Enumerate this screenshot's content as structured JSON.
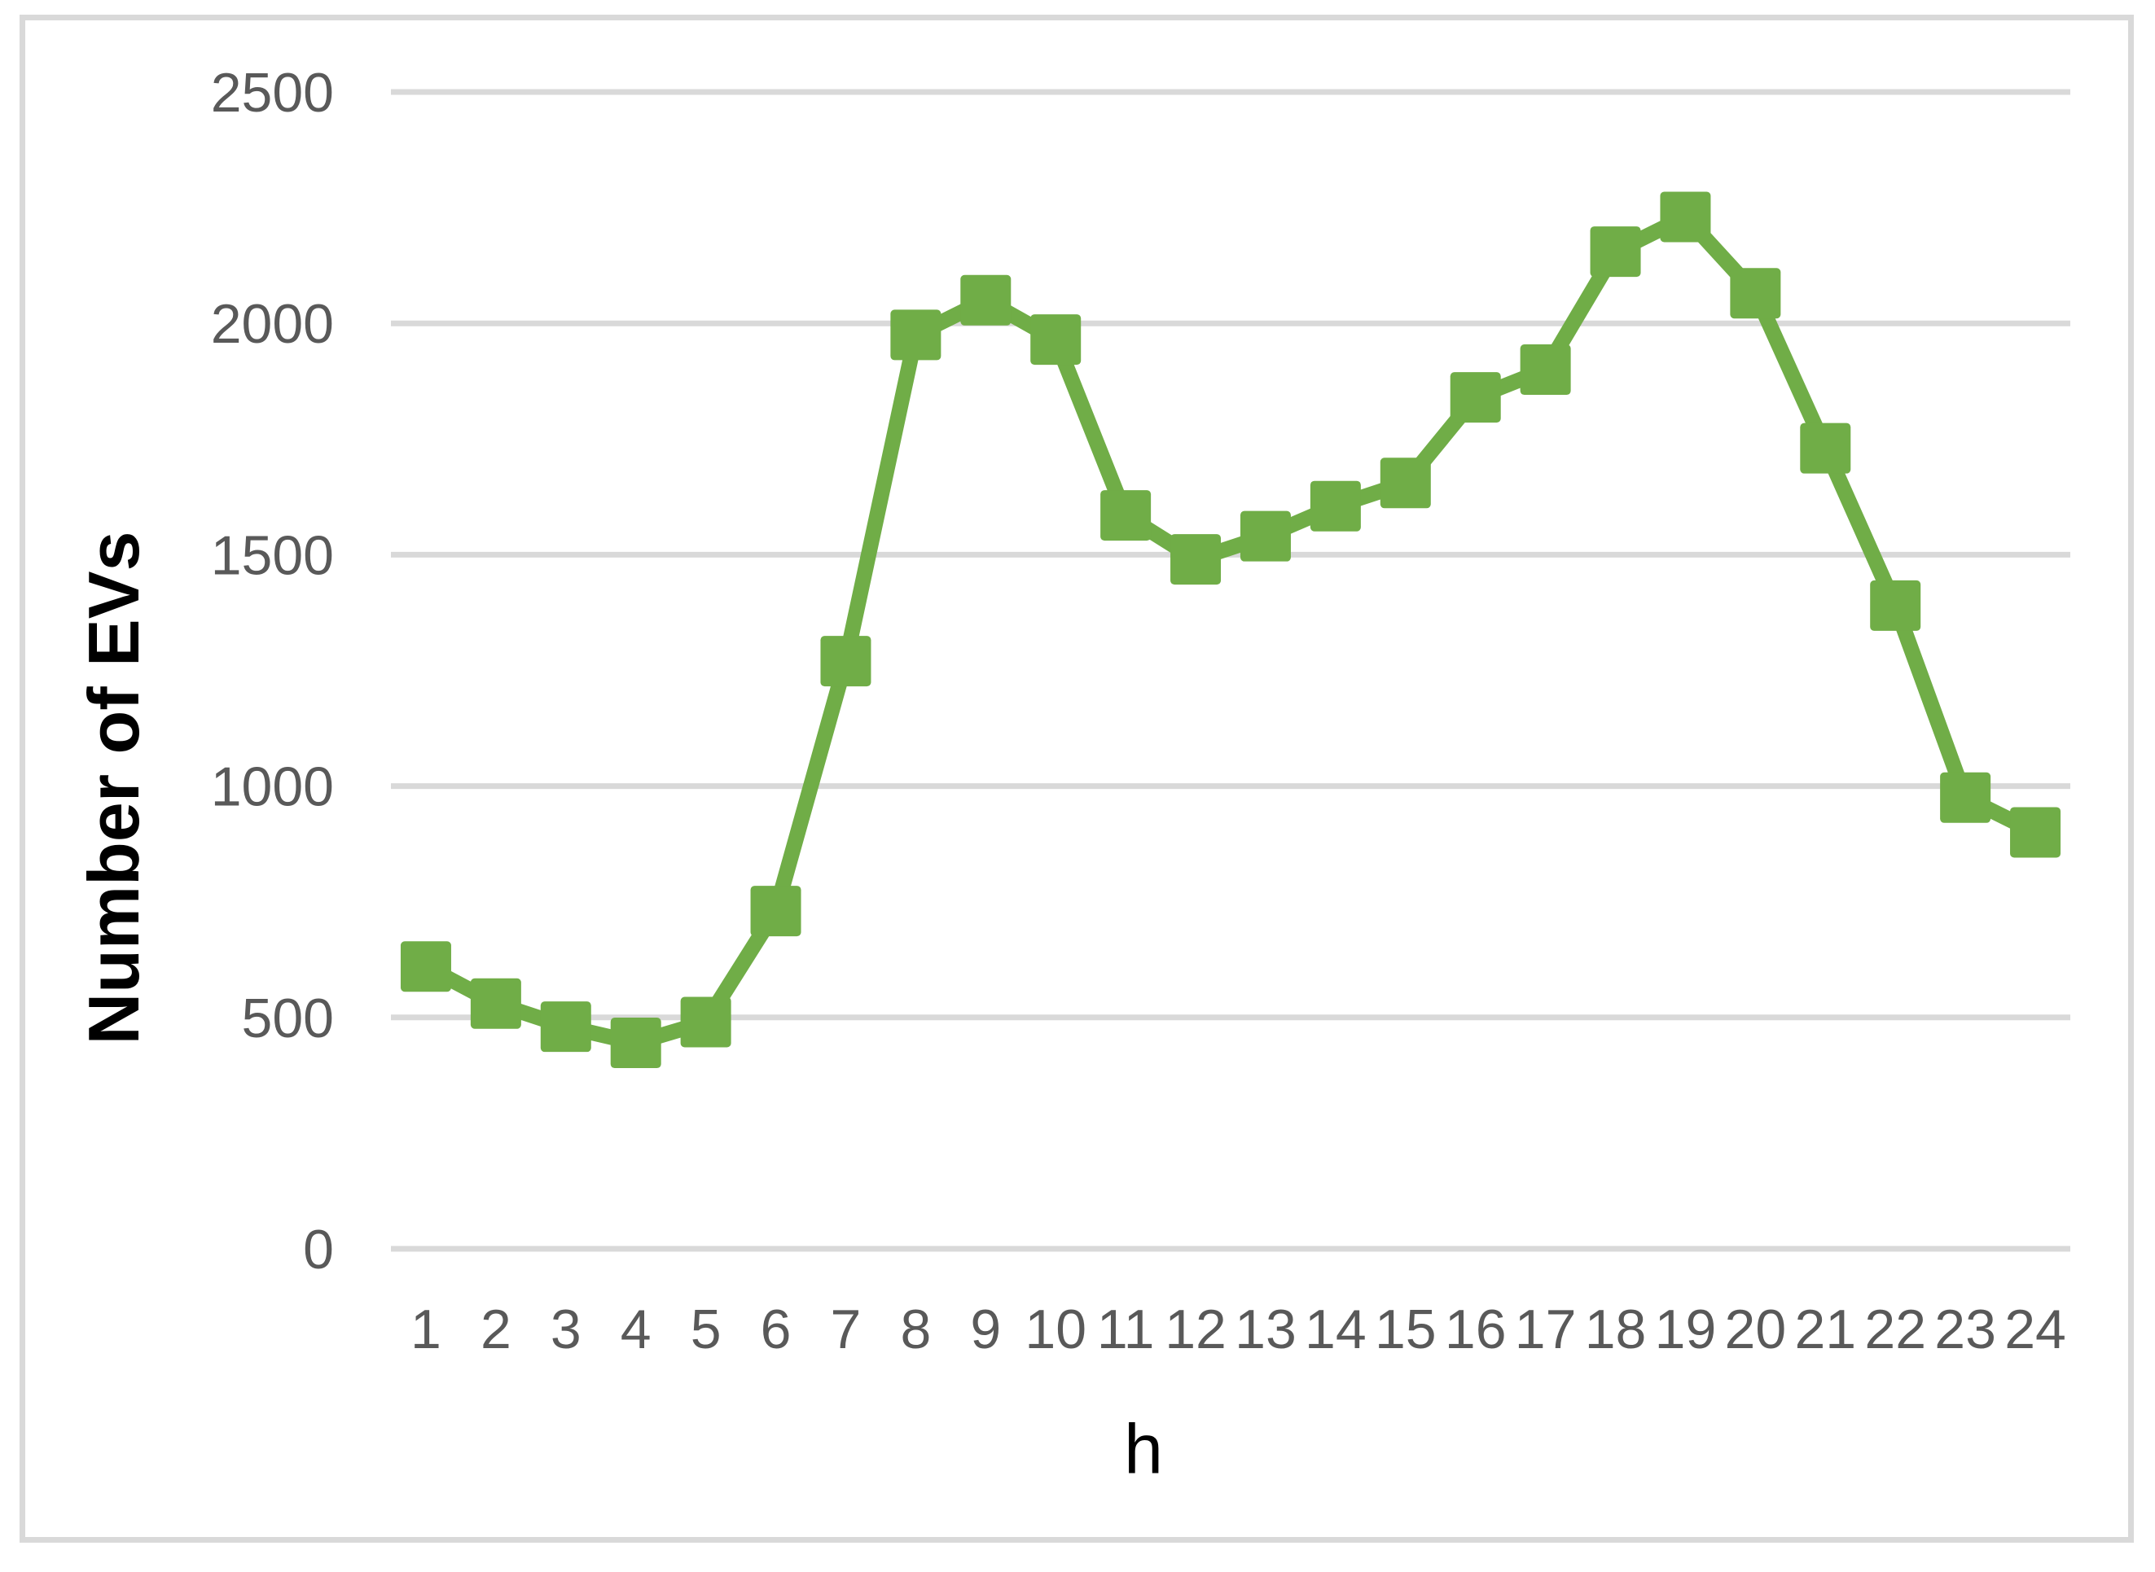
{
  "figure": {
    "background": "#ffffff"
  },
  "colors": {
    "series": "#70AD47",
    "gridline": "#d9d9d9",
    "axis_line": "#d9d9d9",
    "tick_label": "#595959",
    "axis_title": "#000000",
    "frame_border": "#d9d9d9"
  },
  "chart_data": {
    "type": "line",
    "title": "",
    "xlabel": "h",
    "ylabel": "Number of EVs",
    "categories": [
      "1",
      "2",
      "3",
      "4",
      "5",
      "6",
      "7",
      "8",
      "9",
      "10",
      "11",
      "12",
      "13",
      "14",
      "15",
      "16",
      "17",
      "18",
      "19",
      "20",
      "21",
      "22",
      "23",
      "24"
    ],
    "values": [
      610,
      530,
      480,
      445,
      490,
      730,
      1270,
      1975,
      2050,
      1965,
      1585,
      1490,
      1540,
      1605,
      1655,
      1840,
      1900,
      2155,
      2230,
      2065,
      1730,
      1390,
      975,
      900
    ],
    "series": [
      {
        "name": "Number of EVs",
        "values": [
          610,
          530,
          480,
          445,
          490,
          730,
          1270,
          1975,
          2050,
          1965,
          1585,
          1490,
          1540,
          1605,
          1655,
          1840,
          1900,
          2155,
          2230,
          2065,
          1730,
          1390,
          975,
          900
        ]
      }
    ],
    "ylim": [
      0,
      2500
    ],
    "yticks": [
      0,
      500,
      1000,
      1500,
      2000,
      2500
    ],
    "grid": "horizontal",
    "legend": "none",
    "marker": "square",
    "line_color": "#70AD47"
  }
}
